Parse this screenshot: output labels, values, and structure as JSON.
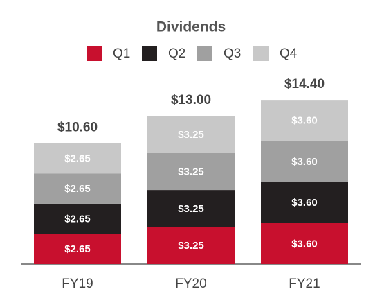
{
  "chart_data": {
    "type": "stacked_bar",
    "title": "Dividends",
    "categories": [
      "FY19",
      "FY20",
      "FY21"
    ],
    "series": [
      {
        "name": "Q1",
        "color": "#c8102e",
        "values": [
          2.65,
          3.25,
          3.6
        ],
        "value_labels": [
          "$2.65",
          "$3.25",
          "$3.60"
        ]
      },
      {
        "name": "Q2",
        "color": "#231f20",
        "values": [
          2.65,
          3.25,
          3.6
        ],
        "value_labels": [
          "$2.65",
          "$3.25",
          "$3.60"
        ]
      },
      {
        "name": "Q3",
        "color": "#a0a0a0",
        "values": [
          2.65,
          3.25,
          3.6
        ],
        "value_labels": [
          "$2.65",
          "$3.25",
          "$3.60"
        ]
      },
      {
        "name": "Q4",
        "color": "#c8c8c8",
        "values": [
          2.65,
          3.25,
          3.6
        ],
        "value_labels": [
          "$2.65",
          "$3.25",
          "$3.60"
        ]
      }
    ],
    "totals": [
      10.6,
      13,
      14.4
    ],
    "total_labels": [
      "$10.60",
      "$13.00",
      "$14.40"
    ]
  }
}
